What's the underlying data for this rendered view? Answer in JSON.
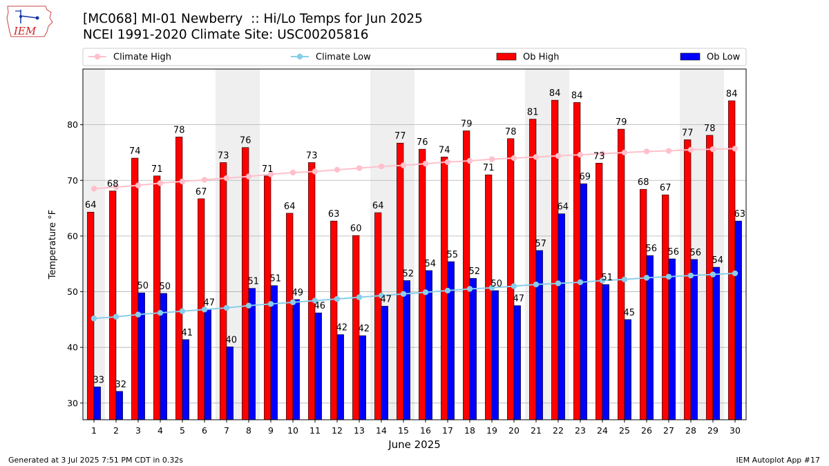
{
  "header": {
    "title_line1": "[MC068] MI-01 Newberry  :: Hi/Lo Temps for Jun 2025",
    "title_line2": "NCEI 1991-2020 Climate Site: USC00205816",
    "logo_text": "IEM"
  },
  "footer": {
    "generated": "Generated at 3 Jul 2025 7:51 PM CDT in 0.32s",
    "app": "IEM Autoplot App #17"
  },
  "colors": {
    "ob_high": "#ff0000",
    "ob_low": "#0000ff",
    "climate_high": "#ffc0cb",
    "climate_low": "#87ceeb",
    "weekend_band": "#efefef",
    "grid": "#b0b0b0"
  },
  "chart_data": {
    "type": "bar",
    "xlabel": "June 2025",
    "ylabel": "Temperature °F",
    "ylim": [
      27,
      90
    ],
    "yticks": [
      30,
      40,
      50,
      60,
      70,
      80
    ],
    "grid": true,
    "legend_position": "top",
    "categories": [
      "1",
      "2",
      "3",
      "4",
      "5",
      "6",
      "7",
      "8",
      "9",
      "10",
      "11",
      "12",
      "13",
      "14",
      "15",
      "16",
      "17",
      "18",
      "19",
      "20",
      "21",
      "22",
      "23",
      "24",
      "25",
      "26",
      "27",
      "28",
      "29",
      "30"
    ],
    "shaded_days": [
      1,
      7,
      8,
      14,
      15,
      21,
      22,
      28,
      29
    ],
    "series": [
      {
        "name": "Ob High",
        "kind": "bar",
        "values": [
          64.3,
          68.1,
          74.0,
          70.8,
          77.8,
          66.7,
          73.2,
          75.9,
          70.8,
          64.1,
          73.2,
          62.7,
          60.1,
          64.2,
          76.7,
          75.6,
          74.2,
          78.9,
          71.0,
          77.5,
          81.0,
          84.4,
          84.0,
          73.1,
          79.2,
          68.4,
          67.4,
          77.3,
          78.1,
          84.3
        ],
        "labels": [
          "64",
          "68",
          "74",
          "71",
          "78",
          "67",
          "73",
          "76",
          "71",
          "64",
          "73",
          "63",
          "60",
          "64",
          "77",
          "76",
          "74",
          "79",
          "71",
          "78",
          "81",
          "84",
          "84",
          "73",
          "79",
          "68",
          "67",
          "77",
          "78",
          "84"
        ]
      },
      {
        "name": "Ob Low",
        "kind": "bar",
        "values": [
          32.9,
          32.1,
          49.8,
          49.7,
          41.4,
          46.8,
          40.1,
          50.6,
          51.1,
          48.6,
          46.2,
          42.3,
          42.1,
          47.4,
          52.0,
          53.8,
          55.4,
          52.4,
          50.2,
          47.5,
          57.4,
          64.0,
          69.4,
          51.3,
          45.0,
          56.5,
          55.9,
          55.8,
          54.4,
          62.7
        ],
        "labels": [
          "33",
          "32",
          "50",
          "50",
          "41",
          "47",
          "40",
          "51",
          "51",
          "49",
          "46",
          "42",
          "42",
          "47",
          "52",
          "54",
          "55",
          "52",
          "50",
          "47",
          "57",
          "64",
          "69",
          "51",
          "45",
          "56",
          "56",
          "56",
          "54",
          "63"
        ]
      },
      {
        "name": "Climate High",
        "kind": "line",
        "values": [
          68.5,
          68.8,
          69.1,
          69.5,
          69.8,
          70.1,
          70.4,
          70.7,
          71.1,
          71.4,
          71.6,
          71.9,
          72.2,
          72.5,
          72.7,
          73.0,
          73.3,
          73.5,
          73.8,
          74.0,
          74.2,
          74.4,
          74.6,
          74.8,
          75.0,
          75.2,
          75.3,
          75.5,
          75.6,
          75.7
        ]
      },
      {
        "name": "Climate Low",
        "kind": "line",
        "values": [
          45.2,
          45.5,
          45.9,
          46.2,
          46.5,
          46.8,
          47.1,
          47.5,
          47.8,
          48.1,
          48.4,
          48.7,
          49.0,
          49.3,
          49.6,
          49.9,
          50.2,
          50.5,
          50.7,
          51.0,
          51.3,
          51.5,
          51.7,
          52.0,
          52.2,
          52.5,
          52.7,
          52.9,
          53.1,
          53.3
        ]
      }
    ]
  }
}
